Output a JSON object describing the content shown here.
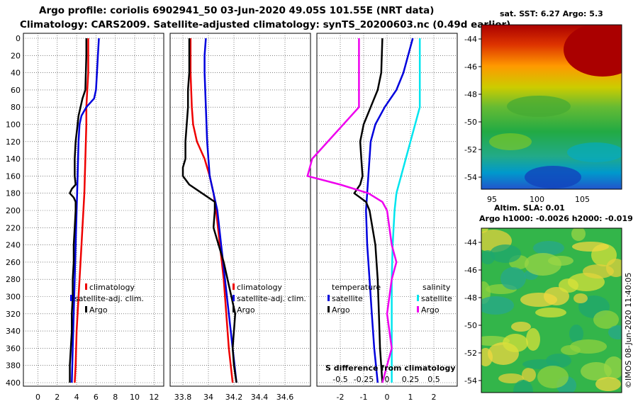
{
  "title_line1": "Argo profile: coriolis 6902941_50 03-Jun-2020 49.05S 101.55E (NRT data)",
  "title_line2": "Climatology: CARS2009. Satellite-adjusted climatology: synTS_20200603.nc (0.49d earlier)",
  "colors": {
    "climatology": "#ee0000",
    "satellite": "#0000dd",
    "argo": "#000000",
    "salinity_satellite": "#00e5ee",
    "salinity_argo": "#ee00ee"
  },
  "depth_ticks": [
    "0",
    "20",
    "40",
    "60",
    "80",
    "100",
    "120",
    "140",
    "160",
    "180",
    "200",
    "220",
    "240",
    "260",
    "280",
    "300",
    "320",
    "340",
    "360",
    "380",
    "400"
  ],
  "chart_data": [
    {
      "type": "line",
      "name": "temperature-panel",
      "xlim": [
        -1.5,
        13
      ],
      "ylim": [
        400,
        0
      ],
      "x_ticks": [
        "0",
        "2",
        "4",
        "6",
        "8",
        "10",
        "12"
      ],
      "legend": [
        "climatology",
        "satellite-adj. clim.",
        "Argo"
      ],
      "series": [
        {
          "name": "climatology",
          "depth": [
            0,
            40,
            60,
            80,
            100,
            140,
            180,
            220,
            260,
            300,
            340,
            380,
            400
          ],
          "values": [
            5.2,
            5.2,
            5.1,
            5.0,
            5.0,
            4.9,
            4.8,
            4.6,
            4.4,
            4.2,
            4.0,
            3.9,
            3.8
          ]
        },
        {
          "name": "satellite-adj. clim.",
          "depth": [
            0,
            20,
            40,
            60,
            70,
            80,
            90,
            100,
            120,
            160,
            200,
            240,
            280,
            320,
            360,
            400
          ],
          "values": [
            6.3,
            6.2,
            6.1,
            6.0,
            5.8,
            5.0,
            4.5,
            4.3,
            4.2,
            4.1,
            4.0,
            3.9,
            3.8,
            3.7,
            3.6,
            3.5
          ]
        },
        {
          "name": "Argo",
          "depth": [
            0,
            20,
            40,
            60,
            70,
            80,
            90,
            100,
            110,
            120,
            140,
            160,
            170,
            175,
            180,
            185,
            190,
            200,
            220,
            240,
            260,
            280,
            300,
            320,
            340,
            360,
            380,
            400
          ],
          "values": [
            5.0,
            5.0,
            4.95,
            4.9,
            4.6,
            4.4,
            4.2,
            4.1,
            4.0,
            3.9,
            3.8,
            3.8,
            3.9,
            3.5,
            3.3,
            3.7,
            3.9,
            3.9,
            3.8,
            3.7,
            3.7,
            3.6,
            3.6,
            3.5,
            3.5,
            3.4,
            3.3,
            3.3
          ]
        }
      ]
    },
    {
      "type": "line",
      "name": "salinity-panel",
      "xlim": [
        33.7,
        34.8
      ],
      "ylim": [
        400,
        0
      ],
      "x_ticks": [
        "33.8",
        "34",
        "34.2",
        "34.4",
        "34.6"
      ],
      "legend": [
        "climatology",
        "satellite-adj. clim.",
        "Argo"
      ],
      "series": [
        {
          "name": "climatology",
          "depth": [
            0,
            40,
            80,
            100,
            120,
            140,
            160,
            180,
            200,
            240,
            280,
            320,
            360,
            400
          ],
          "values": [
            33.86,
            33.86,
            33.87,
            33.88,
            33.91,
            33.97,
            34.01,
            34.04,
            34.06,
            34.09,
            34.12,
            34.14,
            34.16,
            34.19
          ]
        },
        {
          "name": "satellite-adj. clim.",
          "depth": [
            0,
            20,
            40,
            80,
            120,
            160,
            180,
            200,
            240,
            280,
            320,
            360,
            400
          ],
          "values": [
            33.98,
            33.97,
            33.97,
            33.98,
            33.99,
            34.01,
            34.04,
            34.07,
            34.1,
            34.13,
            34.16,
            34.19,
            34.22
          ]
        },
        {
          "name": "Argo",
          "depth": [
            0,
            20,
            40,
            60,
            80,
            100,
            120,
            140,
            150,
            160,
            170,
            180,
            190,
            200,
            220,
            240,
            260,
            280,
            300,
            320,
            340,
            360,
            380,
            400
          ],
          "values": [
            33.85,
            33.85,
            33.85,
            33.84,
            33.84,
            33.83,
            33.82,
            33.82,
            33.8,
            33.8,
            33.85,
            33.95,
            34.05,
            34.05,
            34.04,
            34.08,
            34.12,
            34.15,
            34.18,
            34.21,
            34.2,
            34.19,
            34.2,
            34.22
          ]
        }
      ]
    },
    {
      "type": "line",
      "name": "difference-panel",
      "xlim": [
        -3,
        3
      ],
      "ylim": [
        400,
        0
      ],
      "x_ticks": [
        "-2",
        "-1",
        "0",
        "1",
        "2"
      ],
      "difference_xlabel": "S difference from climatology",
      "difference_ticks": [
        "-0.5",
        "-0.25",
        "0",
        "0.25",
        "0.5"
      ],
      "legend_temperature": {
        "title": "temperature",
        "items": [
          "satellite",
          "Argo"
        ]
      },
      "legend_salinity": {
        "title": "salinity",
        "items": [
          "satellite",
          "Argo"
        ]
      },
      "series": [
        {
          "name": "temperature satellite",
          "depth": [
            0,
            20,
            40,
            60,
            80,
            100,
            120,
            160,
            200,
            240,
            280,
            320,
            360,
            400
          ],
          "values": [
            1.1,
            0.9,
            0.7,
            0.4,
            -0.1,
            -0.5,
            -0.7,
            -0.8,
            -0.9,
            -0.85,
            -0.75,
            -0.65,
            -0.55,
            -0.4
          ]
        },
        {
          "name": "temperature Argo",
          "depth": [
            0,
            40,
            60,
            80,
            100,
            120,
            140,
            160,
            170,
            180,
            190,
            200,
            240,
            280,
            320,
            360,
            400
          ],
          "values": [
            -0.2,
            -0.25,
            -0.4,
            -0.7,
            -1.0,
            -1.15,
            -1.1,
            -1.05,
            -1.15,
            -1.4,
            -0.9,
            -0.75,
            -0.5,
            -0.4,
            -0.35,
            -0.3,
            -0.2
          ]
        },
        {
          "name": "salinity satellite",
          "depth": [
            0,
            80,
            160,
            180,
            200,
            240,
            280,
            320,
            360,
            400
          ],
          "values": [
            0.35,
            0.35,
            0.15,
            0.1,
            0.08,
            0.06,
            0.05,
            0.05,
            0.05,
            0.05
          ]
        },
        {
          "name": "salinity Argo",
          "depth": [
            0,
            80,
            140,
            160,
            170,
            180,
            190,
            200,
            240,
            260,
            280,
            320,
            360,
            400
          ],
          "values": [
            -0.3,
            -0.3,
            -0.8,
            -0.85,
            -0.5,
            -0.2,
            -0.05,
            0.0,
            0.05,
            0.1,
            0.05,
            0.0,
            0.05,
            -0.05
          ]
        }
      ]
    },
    {
      "type": "heatmap",
      "name": "sst-map",
      "title": "sat. SST: 6.27 Argo: 5.3",
      "x_ticks": [
        "95",
        "100",
        "105"
      ],
      "y_ticks": [
        "-44",
        "-46",
        "-48",
        "-50",
        "-52",
        "-54"
      ]
    },
    {
      "type": "heatmap",
      "name": "sla-map",
      "title_line1": "Altim. SLA: 0.01",
      "title_line2": "Argo h1000: -0.0026 h2000: -0.019",
      "y_ticks": [
        "-44",
        "-46",
        "-48",
        "-50",
        "-52",
        "-54"
      ]
    }
  ],
  "credit": "©IMOS 08-Jun-2020 11:40:05"
}
